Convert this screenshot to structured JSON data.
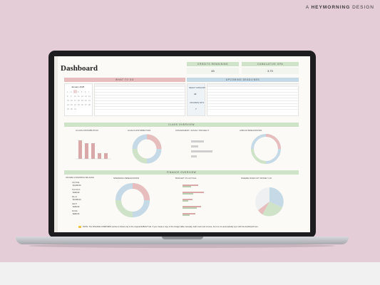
{
  "brand": {
    "prefix": "A",
    "name": "HEYMORNING",
    "suffix": "DESIGN"
  },
  "dashboard": {
    "title": "Dashboard",
    "headers": {
      "credits": "CREDITS REMAINING",
      "gpa": "CUMULATIVE GPA",
      "todo": "WHAT TO DO",
      "deadlines": "UPCOMING DEADLINES",
      "class_overview": "CLASS OVERVIEW",
      "class_distribution": "CLASS DISTRIBUTION",
      "goals_distribution": "GOALS DISTRIBUTION",
      "assignment": "ASSIGNMENT / EXAM / PROJECT",
      "breakdown": "A/B/C/D BREAKDOWN",
      "finance_overview": "FINANCE OVERVIEW",
      "income": "INCOME & SPENDING BALANCE",
      "spending": "SPENDING BREAKDOWN",
      "budget": "BUDGET VS ACTUAL",
      "money": "WHERE DOES MY MONEY GO"
    },
    "credits_value": "45",
    "gpa_value": "3.70",
    "calendar_month": "January 2025",
    "select_category": "SELECT CATEGORY",
    "select_value": "All",
    "upcoming_days_label": "UPCOMING DAYS",
    "upcoming_days_value": "7",
    "finance_rows": [
      "$1,000.00",
      "$100.00",
      "$1,500.00",
      "$100.00",
      "$400.00"
    ],
    "finance_labels": [
      "INCOME",
      "SAVINGS",
      "BILLS",
      "RENT",
      "MORE"
    ],
    "note": "NOTE: The FINANCE OVERVIEW section is linked only to the original RoB/AVT tab. If you create a copy of the budget table manually, both insert and remove, but it is not automatically sync with the dashboard here."
  }
}
